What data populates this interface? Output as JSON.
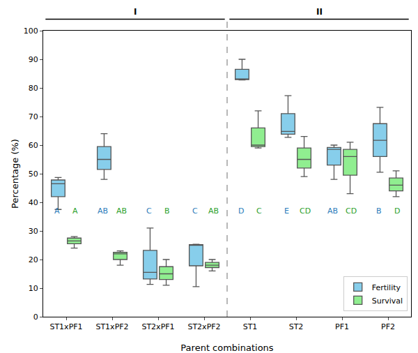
{
  "chart_data": {
    "type": "box",
    "x_label": "Parent combinations",
    "y_label": "Percentage (%)",
    "categories": [
      "ST1xPF1",
      "ST1xPF2",
      "ST2xPF1",
      "ST2xPF2",
      "ST1",
      "ST2",
      "PF1",
      "PF2"
    ],
    "groups": [
      {
        "label": "I",
        "categories": [
          "ST1xPF1",
          "ST1xPF2",
          "ST2xPF1",
          "ST2xPF2"
        ]
      },
      {
        "label": "II",
        "categories": [
          "ST1",
          "ST2",
          "PF1",
          "PF2"
        ]
      }
    ],
    "series": [
      {
        "name": "Fertility",
        "color": "#87ceeb",
        "letter_color": "#2b7bba",
        "min": [
          37.5,
          48.0,
          11.3,
          10.5,
          82.8,
          62.7,
          48.0,
          50.5
        ],
        "q1": [
          42.0,
          51.5,
          13.2,
          17.8,
          82.9,
          63.8,
          53.0,
          56.0
        ],
        "median": [
          46.5,
          55.0,
          15.5,
          25.0,
          83.0,
          64.8,
          58.5,
          61.7
        ],
        "q3": [
          47.8,
          59.5,
          23.2,
          25.2,
          86.5,
          71.0,
          59.2,
          67.5
        ],
        "max": [
          48.7,
          64.0,
          31.0,
          25.3,
          90.0,
          77.3,
          60.0,
          73.2
        ],
        "letters": [
          "A",
          "AB",
          "C",
          "C",
          "D",
          "E",
          "AB",
          "B"
        ]
      },
      {
        "name": "Survival",
        "color": "#90ee90",
        "letter_color": "#2ca02c",
        "min": [
          24.0,
          18.0,
          11.0,
          16.0,
          59.0,
          49.0,
          43.0,
          42.0
        ],
        "q1": [
          25.5,
          20.0,
          13.0,
          17.2,
          59.5,
          52.0,
          49.5,
          44.0
        ],
        "median": [
          26.5,
          22.0,
          15.0,
          18.0,
          60.0,
          55.0,
          56.0,
          46.0
        ],
        "q3": [
          27.5,
          22.5,
          17.5,
          19.0,
          66.0,
          59.0,
          58.5,
          48.5
        ],
        "max": [
          28.0,
          23.0,
          20.0,
          20.0,
          72.0,
          63.0,
          61.0,
          51.0
        ],
        "letters": [
          "A",
          "AB",
          "B",
          "AB",
          "C",
          "CD",
          "CD",
          "D"
        ]
      }
    ],
    "ylim": [
      0,
      100
    ],
    "yticks": [
      0,
      10,
      20,
      30,
      40,
      50,
      60,
      70,
      80,
      90,
      100
    ],
    "grid": false,
    "legend": "lower right"
  }
}
